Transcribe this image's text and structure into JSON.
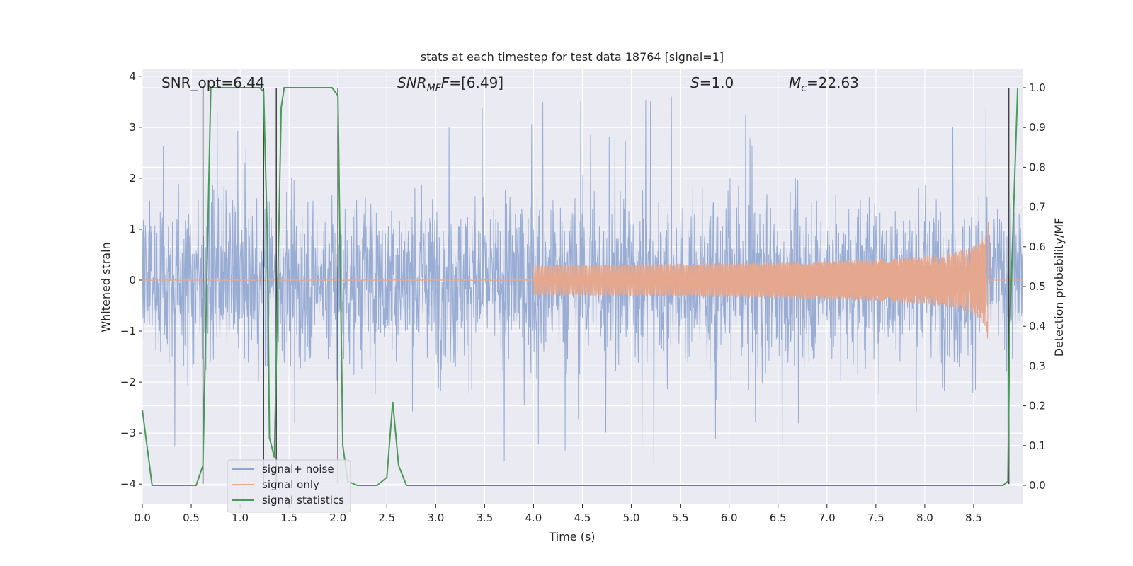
{
  "chart_data": {
    "type": "line",
    "title": "stats at each timestep for test data 18764 [signal=1]",
    "xlabel": "Time (s)",
    "ylabel_left": "Whitened strain",
    "ylabel_right": "Detection probability/MF",
    "xlim": [
      0.0,
      9.0
    ],
    "ylim_left": [
      -4.4,
      4.15
    ],
    "ylim_right": [
      -0.048,
      1.048
    ],
    "x_ticks": [
      "0.0",
      "0.5",
      "1.0",
      "1.5",
      "2.0",
      "2.5",
      "3.0",
      "3.5",
      "4.0",
      "4.5",
      "5.0",
      "5.5",
      "6.0",
      "6.5",
      "7.0",
      "7.5",
      "8.0",
      "8.5"
    ],
    "y_ticks_left": [
      "4",
      "3",
      "2",
      "1",
      "0",
      "−1",
      "−2",
      "−3",
      "−4"
    ],
    "y_ticks_right": [
      "1.0",
      "0.9",
      "0.8",
      "0.7",
      "0.6",
      "0.5",
      "0.4",
      "0.3",
      "0.2",
      "0.1",
      "0.0"
    ],
    "grid": true,
    "legend_placement": "lower-left",
    "annotations": {
      "snr_opt": "SNR_opt=6.44",
      "snr_mf": "=[6.49]",
      "snr_mf_prefix": "SNR",
      "snr_mf_sub": "MF",
      "s": "=1.0",
      "s_prefix": "S",
      "mc": "=22.63",
      "mc_prefix": "M",
      "mc_sub": "c"
    },
    "series": [
      {
        "name": "signal+ noise",
        "color": "#8fa5d0",
        "axis": "left",
        "description_values": "whitened noise, envelope approx ±2.2, peaks to 3.5 / -4.0"
      },
      {
        "name": "signal only",
        "color": "#e5a88f",
        "axis": "left",
        "chirp_end_time": 8.65,
        "chirp_peak_amplitude": 1.3
      },
      {
        "name": "signal statistics",
        "color": "#4c9a5a",
        "axis": "right",
        "x": [
          0.0,
          0.1,
          0.2,
          0.55,
          0.62,
          0.7,
          0.72,
          1.2,
          1.24,
          1.28,
          1.3,
          1.35,
          1.42,
          1.45,
          1.94,
          2.0,
          2.05,
          2.1,
          2.2,
          2.4,
          2.5,
          2.56,
          2.62,
          2.7,
          2.8,
          8.8,
          8.85,
          8.87,
          8.95
        ],
        "values": [
          0.19,
          0.0,
          0.0,
          0.0,
          0.05,
          1.0,
          1.0,
          1.0,
          0.99,
          0.6,
          0.12,
          0.07,
          0.95,
          1.0,
          1.0,
          0.98,
          0.1,
          0.01,
          0.0,
          0.0,
          0.02,
          0.21,
          0.05,
          0.0,
          0.0,
          0.0,
          0.01,
          0.4,
          1.0
        ]
      }
    ],
    "vertical_markers": [
      0.62,
      1.24,
      1.37,
      2.0,
      8.86
    ]
  }
}
